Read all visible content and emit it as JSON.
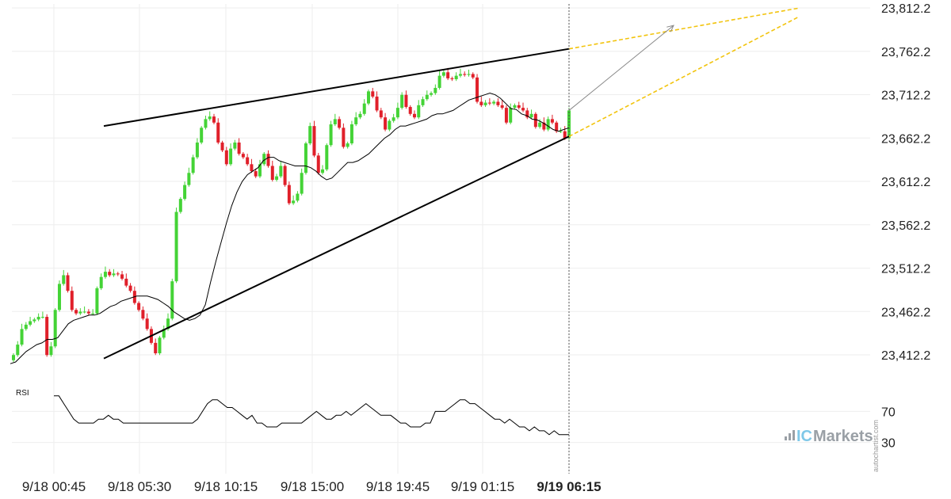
{
  "chart_data": {
    "type": "candlestick",
    "price_axis": {
      "labels": [
        "23,812.2",
        "23,762.2",
        "23,712.2",
        "23,662.2",
        "23,612.2",
        "23,562.2",
        "23,512.2",
        "23,462.2",
        "23,412.2"
      ],
      "range": [
        23402,
        23812
      ]
    },
    "time_axis": {
      "labels": [
        "9/18 00:45",
        "9/18 05:30",
        "9/18 10:15",
        "9/18 15:00",
        "9/18 19:45",
        "9/19 01:15",
        "9/19 06:15"
      ],
      "current": "9/19 06:15"
    },
    "close_series": [
      23412,
      23424,
      23442,
      23447,
      23451,
      23453,
      23456,
      23456,
      23412,
      23422,
      23464,
      23494,
      23504,
      23486,
      23464,
      23460,
      23462,
      23462,
      23460,
      23460,
      23489,
      23502,
      23508,
      23504,
      23506,
      23505,
      23500,
      23492,
      23486,
      23472,
      23464,
      23454,
      23442,
      23426,
      23414,
      23432,
      23442,
      23454,
      23497,
      23577,
      23592,
      23608,
      23622,
      23640,
      23657,
      23674,
      23684,
      23687,
      23680,
      23657,
      23648,
      23632,
      23650,
      23657,
      23644,
      23640,
      23632,
      23624,
      23618,
      23632,
      23644,
      23630,
      23614,
      23618,
      23630,
      23608,
      23587,
      23590,
      23598,
      23622,
      23656,
      23676,
      23642,
      23622,
      23626,
      23654,
      23678,
      23684,
      23674,
      23652,
      23656,
      23678,
      23686,
      23690,
      23702,
      23716,
      23710,
      23694,
      23686,
      23672,
      23682,
      23686,
      23697,
      23712,
      23698,
      23690,
      23686,
      23700,
      23707,
      23712,
      23714,
      23720,
      23734,
      23738,
      23731,
      23730,
      23734,
      23736,
      23735,
      23736,
      23732,
      23704,
      23700,
      23703,
      23702,
      23704,
      23700,
      23697,
      23680,
      23697,
      23700,
      23697,
      23694,
      23686,
      23690,
      23675,
      23680,
      23672,
      23684,
      23680,
      23670,
      23670,
      23662,
      23694
    ],
    "moving_average": {
      "values": [
        23402,
        23404,
        23410,
        23416,
        23420,
        23424,
        23426,
        23430,
        23430,
        23432,
        23440,
        23448,
        23452,
        23454,
        23456,
        23458,
        23458,
        23460,
        23464,
        23468,
        23470,
        23474,
        23476,
        23478,
        23480,
        23480,
        23480,
        23478,
        23476,
        23472,
        23468,
        23462,
        23458,
        23454,
        23452,
        23454,
        23458,
        23470,
        23496,
        23520,
        23542,
        23564,
        23584,
        23600,
        23612,
        23620,
        23624,
        23628,
        23636,
        23640,
        23640,
        23636,
        23634,
        23632,
        23630,
        23630,
        23630,
        23628,
        23624,
        23618,
        23614,
        23616,
        23622,
        23628,
        23634,
        23634,
        23636,
        23640,
        23644,
        23650,
        23656,
        23662,
        23666,
        23672,
        23676,
        23676,
        23678,
        23680,
        23682,
        23684,
        23688,
        23690,
        23690,
        23692,
        23694,
        23698,
        23702,
        23706,
        23708,
        23710,
        23712,
        23714,
        23712,
        23708,
        23702,
        23696,
        23695,
        23690,
        23688,
        23684,
        23683,
        23680,
        23676,
        23672,
        23670,
        23672,
        23674
      ]
    },
    "rising_wedge": {
      "upper": [
        [
          0.0,
          23676
        ],
        [
          1.0,
          23765
        ]
      ],
      "lower": [
        [
          0.0,
          23408
        ],
        [
          1.0,
          23664
        ]
      ],
      "projection_upper_end": 23812,
      "projection_lower_end": 23802,
      "arrow_target": 23792
    },
    "rsi": {
      "label": "RSI",
      "levels": [
        "70",
        "30"
      ],
      "values": [
        90,
        90,
        80,
        70,
        60,
        55,
        55,
        55,
        55,
        60,
        60,
        65,
        60,
        60,
        55,
        55,
        55,
        55,
        55,
        55,
        55,
        55,
        55,
        55,
        55,
        55,
        55,
        55,
        55,
        60,
        70,
        80,
        85,
        85,
        80,
        75,
        75,
        70,
        65,
        60,
        65,
        55,
        55,
        50,
        50,
        50,
        55,
        55,
        55,
        55,
        55,
        60,
        65,
        70,
        65,
        60,
        60,
        65,
        65,
        70,
        65,
        70,
        75,
        80,
        75,
        70,
        65,
        65,
        65,
        60,
        55,
        55,
        50,
        50,
        50,
        55,
        55,
        70,
        70,
        70,
        75,
        80,
        85,
        85,
        80,
        80,
        75,
        70,
        65,
        60,
        60,
        55,
        60,
        55,
        50,
        50,
        45,
        50,
        45,
        45,
        40,
        45,
        40,
        40,
        40
      ]
    }
  },
  "watermark": {
    "ic": "IC",
    "markets": "Markets",
    "side": "autochartist.com"
  },
  "colors": {
    "bull": "#44d336",
    "bear": "#e0202a",
    "wedge": "#000000",
    "projection": "#f2c40e",
    "arrow": "#888888",
    "ma": "#000000"
  }
}
